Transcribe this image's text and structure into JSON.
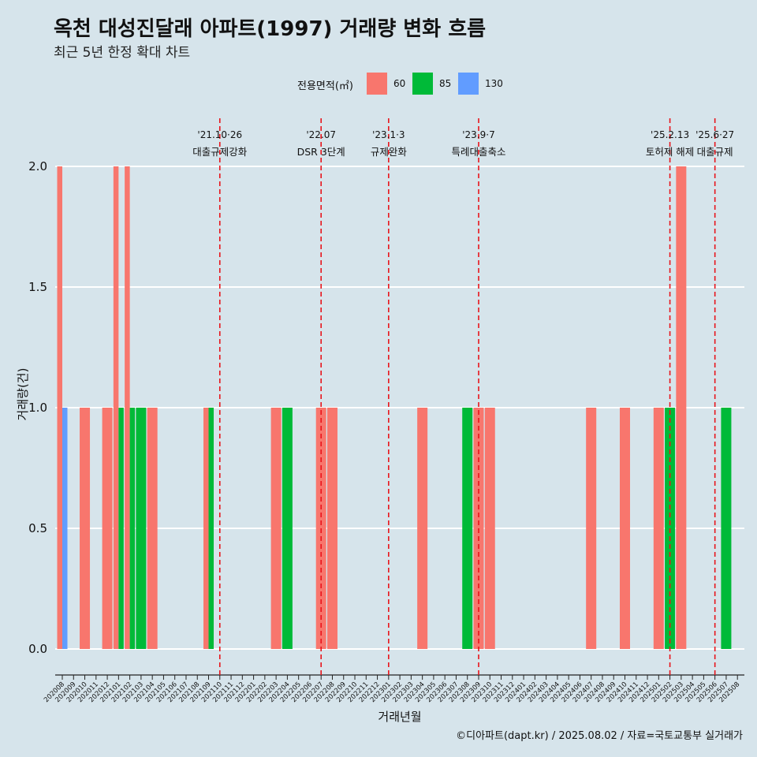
{
  "header": {
    "title": "옥천 대성진달래 아파트(1997) 거래량 변화 흐름",
    "subtitle": "최근 5년 한정 확대 차트"
  },
  "legend": {
    "title": "전용면적(㎡)",
    "items": [
      {
        "label": "60",
        "color": "#f8766d"
      },
      {
        "label": "85",
        "color": "#00ba38"
      },
      {
        "label": "130",
        "color": "#619cff"
      }
    ]
  },
  "caption": "©디아파트(dapt.kr) / 2025.08.02 / 자료=국토교통부 실거래가",
  "chart_data": {
    "type": "bar",
    "xlabel": "거래년월",
    "ylabel": "거래량(건)",
    "ylim": [
      0,
      2
    ],
    "yticks": [
      "0.0",
      "0.5",
      "1.0",
      "1.5",
      "2.0"
    ],
    "categories": [
      "202008",
      "202009",
      "202010",
      "202011",
      "202012",
      "202101",
      "202102",
      "202103",
      "202104",
      "202105",
      "202106",
      "202107",
      "202108",
      "202109",
      "202110",
      "202111",
      "202112",
      "202201",
      "202202",
      "202203",
      "202204",
      "202205",
      "202206",
      "202207",
      "202208",
      "202209",
      "202210",
      "202211",
      "202212",
      "202301",
      "202302",
      "202303",
      "202304",
      "202305",
      "202306",
      "202307",
      "202308",
      "202309",
      "202310",
      "202311",
      "202312",
      "202401",
      "202402",
      "202403",
      "202404",
      "202405",
      "202406",
      "202407",
      "202408",
      "202409",
      "202410",
      "202411",
      "202412",
      "202501",
      "202502",
      "202503",
      "202504",
      "202505",
      "202506",
      "202507",
      "202508"
    ],
    "series": [
      {
        "name": "60",
        "color": "#f8766d",
        "values": [
          2,
          0,
          1,
          0,
          1,
          2,
          2,
          0,
          1,
          0,
          0,
          0,
          0,
          1,
          0,
          0,
          0,
          0,
          0,
          1,
          0,
          0,
          0,
          1,
          1,
          0,
          0,
          0,
          0,
          0,
          0,
          0,
          1,
          0,
          0,
          0,
          0,
          1,
          1,
          0,
          0,
          0,
          0,
          0,
          0,
          0,
          0,
          1,
          0,
          0,
          1,
          0,
          0,
          1,
          0,
          2,
          0,
          0,
          0,
          0,
          0
        ]
      },
      {
        "name": "85",
        "color": "#00ba38",
        "values": [
          0,
          0,
          0,
          0,
          0,
          1,
          1,
          1,
          0,
          0,
          0,
          0,
          0,
          1,
          0,
          0,
          0,
          0,
          0,
          0,
          1,
          0,
          0,
          0,
          0,
          0,
          0,
          0,
          0,
          0,
          0,
          0,
          0,
          0,
          0,
          0,
          1,
          0,
          0,
          0,
          0,
          0,
          0,
          0,
          0,
          0,
          0,
          0,
          0,
          0,
          0,
          0,
          0,
          0,
          1,
          0,
          0,
          0,
          0,
          1,
          0
        ]
      },
      {
        "name": "130",
        "color": "#619cff",
        "values": [
          1,
          0,
          0,
          0,
          0,
          0,
          0,
          0,
          0,
          0,
          0,
          0,
          0,
          0,
          0,
          0,
          0,
          0,
          0,
          0,
          0,
          0,
          0,
          0,
          0,
          0,
          0,
          0,
          0,
          0,
          0,
          0,
          0,
          0,
          0,
          0,
          0,
          0,
          0,
          0,
          0,
          0,
          0,
          0,
          0,
          0,
          0,
          0,
          0,
          0,
          0,
          0,
          0,
          0,
          0,
          0,
          0,
          0,
          0,
          0,
          0
        ]
      }
    ],
    "events": [
      {
        "date": "'21.10·26",
        "label": "대출규제강화",
        "x": "202110"
      },
      {
        "date": "'22.07",
        "label": "DSR 3단계",
        "x": "202207"
      },
      {
        "date": "'23.1·3",
        "label": "규제완화",
        "x": "202301"
      },
      {
        "date": "'23.9·7",
        "label": "특례대출축소",
        "x": "202309"
      },
      {
        "date": "'25.2.13",
        "label": "토허제 해제",
        "x": "202502"
      },
      {
        "date": "'25.6·27",
        "label": "대출규제",
        "x": "202506"
      }
    ],
    "event_line_color": "#e8141b",
    "grid": true
  }
}
